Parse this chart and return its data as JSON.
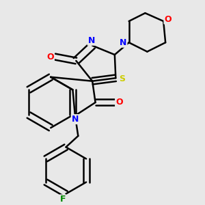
{
  "background_color": "#e8e8e8",
  "bond_color": "#000000",
  "bond_width": 1.8,
  "atom_colors": {
    "N": "#0000ff",
    "O": "#ff0000",
    "S": "#cccc00",
    "F": "#008800",
    "C": "#000000"
  },
  "font_size": 9,
  "fig_width": 3.0,
  "fig_height": 3.0,
  "dpi": 100
}
